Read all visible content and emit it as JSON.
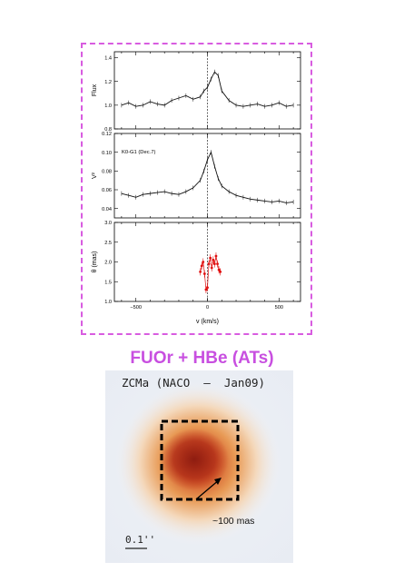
{
  "chart_data": [
    {
      "type": "line",
      "ylabel": "Flux",
      "ylim": [
        0.8,
        1.45
      ],
      "yticks": [
        "0.8",
        "1.0",
        "1.2",
        "1.4"
      ],
      "xlim": [
        -650,
        650
      ],
      "vline": 0,
      "series": [
        {
          "x": [
            -600,
            -550,
            -500,
            -450,
            -400,
            -350,
            -300,
            -250,
            -200,
            -150,
            -100,
            -50,
            -25,
            0,
            25,
            50,
            75,
            100,
            150,
            200,
            250,
            300,
            350,
            400,
            450,
            500,
            550,
            600
          ],
          "values": [
            1.0,
            1.02,
            0.99,
            1.0,
            1.03,
            1.01,
            1.0,
            1.04,
            1.06,
            1.08,
            1.05,
            1.07,
            1.12,
            1.15,
            1.22,
            1.28,
            1.25,
            1.12,
            1.04,
            1.0,
            0.99,
            1.0,
            1.01,
            0.99,
            1.0,
            1.02,
            0.99,
            1.0
          ]
        }
      ]
    },
    {
      "type": "line",
      "ylabel": "V²",
      "ylim": [
        0.03,
        0.12
      ],
      "yticks": [
        "0.04",
        "0.06",
        "0.08",
        "0.10",
        "0.12"
      ],
      "xlim": [
        -650,
        650
      ],
      "vline": 0,
      "annotation": "K0-G1 (Dec.7)",
      "series": [
        {
          "x": [
            -600,
            -550,
            -500,
            -450,
            -400,
            -350,
            -300,
            -250,
            -200,
            -150,
            -100,
            -50,
            -25,
            0,
            25,
            50,
            75,
            100,
            150,
            200,
            250,
            300,
            350,
            400,
            450,
            500,
            550,
            600
          ],
          "values": [
            0.056,
            0.054,
            0.052,
            0.055,
            0.056,
            0.057,
            0.058,
            0.056,
            0.055,
            0.058,
            0.062,
            0.07,
            0.08,
            0.092,
            0.1,
            0.085,
            0.072,
            0.064,
            0.058,
            0.054,
            0.052,
            0.05,
            0.049,
            0.048,
            0.047,
            0.048,
            0.046,
            0.047
          ]
        }
      ]
    },
    {
      "type": "scatter",
      "ylabel": "θ (mas)",
      "xlabel": "v (km/s)",
      "ylim": [
        1.0,
        3.0
      ],
      "yticks": [
        "1.0",
        "1.5",
        "2.0",
        "2.5",
        "3.0"
      ],
      "xlim": [
        -650,
        650
      ],
      "xticks": [
        "−500",
        "0",
        "500"
      ],
      "vline": 0,
      "series": [
        {
          "color": "#e01010",
          "x": [
            -50,
            -40,
            -30,
            -20,
            -10,
            0,
            10,
            20,
            30,
            40,
            50,
            60,
            70,
            80,
            90
          ],
          "values": [
            1.75,
            1.9,
            2.0,
            1.7,
            1.3,
            1.35,
            1.95,
            2.1,
            1.85,
            2.05,
            1.95,
            2.15,
            1.95,
            1.8,
            1.75
          ]
        }
      ]
    }
  ],
  "caption": "FUOr + HBe (ATs)",
  "image": {
    "title": "ZCMa (NACO  –  Jan09)",
    "size_label": "~100 mas",
    "scale_label": "0.1''"
  },
  "colors": {
    "frame": "#d85ce0",
    "caption": "#c84fe0",
    "points": "#e01010"
  }
}
